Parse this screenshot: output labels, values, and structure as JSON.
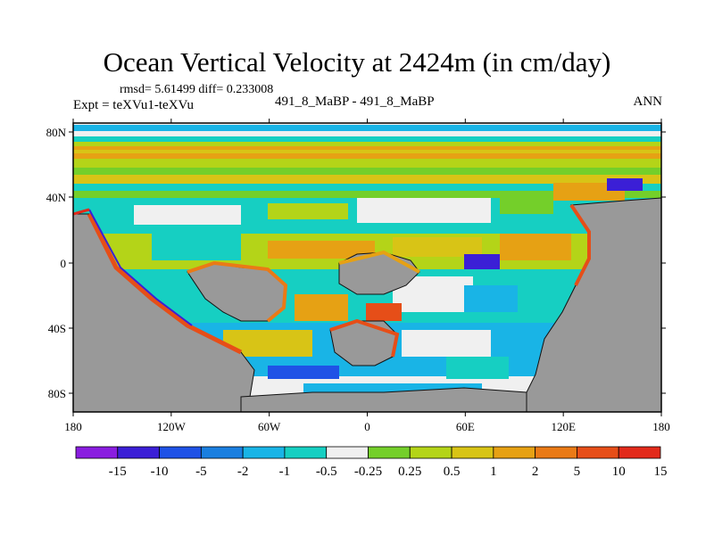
{
  "title": "Ocean Vertical Velocity at 2424m (in cm/day)",
  "stats": "rmsd= 5.61499 diff= 0.233008",
  "expt": "Expt = teXVu1-teXVu",
  "runs": "491_8_MaBP - 491_8_MaBP",
  "season": "ANN",
  "colors": {
    "land": "#999999",
    "coast": "#111111"
  },
  "lat_labels": [
    "80N",
    "40N",
    "0",
    "40S",
    "80S"
  ],
  "lon_labels": [
    "180",
    "120W",
    "60W",
    "0",
    "60E",
    "120E",
    "180"
  ],
  "colorbar": {
    "colors": [
      "#8a1de0",
      "#3b1fd6",
      "#1f52e6",
      "#1a7fe0",
      "#19b4e6",
      "#16cfc2",
      "#f0f0f0",
      "#74cf2a",
      "#b4d418",
      "#d8c416",
      "#e6a114",
      "#ea7a16",
      "#e64e18",
      "#e22a1a"
    ],
    "labels": [
      "-15",
      "-10",
      "-5",
      "-2",
      "-1",
      "-0.5",
      "-0.25",
      "0.25",
      "0.5",
      "1",
      "2",
      "5",
      "10",
      "15"
    ]
  }
}
